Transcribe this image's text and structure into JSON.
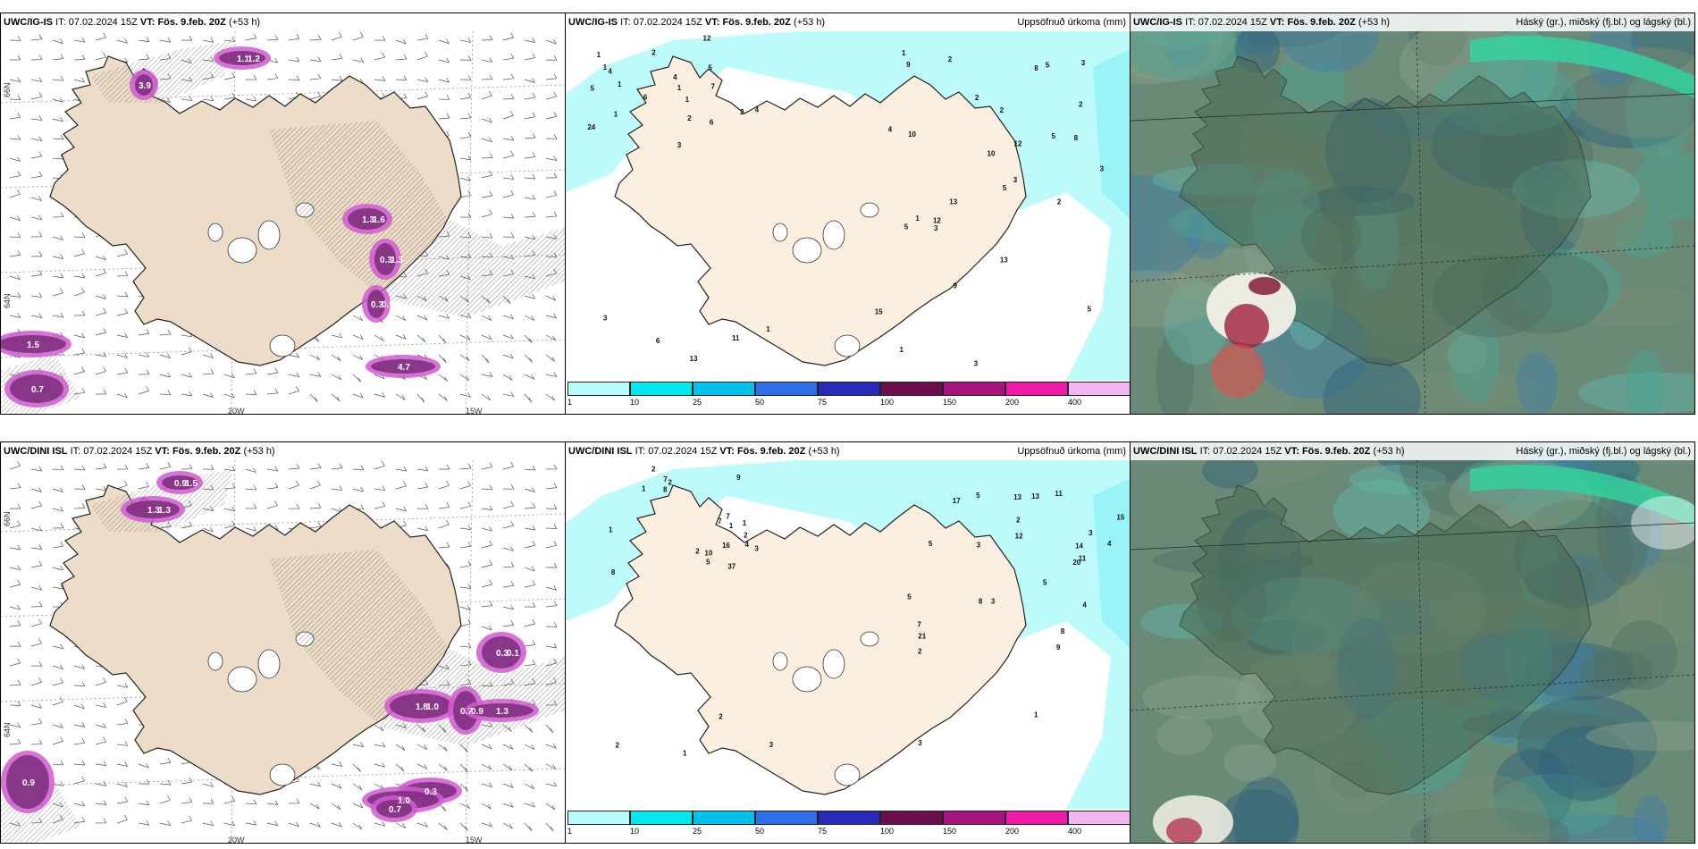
{
  "panels": [
    {
      "id": "p1",
      "model": "UWC/IG-IS",
      "it_label": "IT:",
      "it": "07.02.2024 15Z",
      "vt_label": "VT:",
      "vt": "Fös. 9.feb. 20Z",
      "lead": "(+53 h)",
      "right": ""
    },
    {
      "id": "p2",
      "model": "UWC/IG-IS",
      "it_label": "IT:",
      "it": "07.02.2024 15Z",
      "vt_label": "VT:",
      "vt": "Fös. 9.feb. 20Z",
      "lead": "(+53 h)",
      "right": "Uppsöfnuð úrkoma (mm)"
    },
    {
      "id": "p3",
      "model": "UWC/IG-IS",
      "it_label": "IT:",
      "it": "07.02.2024 15Z",
      "vt_label": "VT:",
      "vt": "Fös. 9.feb. 20Z",
      "lead": "(+53 h)",
      "right": "Háský (gr.), miðský (fj.bl.) og lágský (bl.)"
    },
    {
      "id": "p4",
      "model": "UWC/DINI ISL",
      "it_label": "IT:",
      "it": "07.02.2024 15Z",
      "vt_label": "VT:",
      "vt": "Fös. 9.feb. 20Z",
      "lead": "(+53 h)",
      "right": ""
    },
    {
      "id": "p5",
      "model": "UWC/DINI ISL",
      "it_label": "IT:",
      "it": "07.02.2024 15Z",
      "vt_label": "VT:",
      "vt": "Fös. 9.feb. 20Z",
      "lead": "(+53 h)",
      "right": "Uppsöfnuð úrkoma (mm)"
    },
    {
      "id": "p6",
      "model": "UWC/DINI ISL",
      "it_label": "IT:",
      "it": "07.02.2024 15Z",
      "vt_label": "VT:",
      "vt": "Fös. 9.feb. 20Z",
      "lead": "(+53 h)",
      "right": "Háský (gr.), miðský (fj.bl.) og lágský (bl.)"
    }
  ],
  "axes": {
    "lon_left": "20W",
    "lon_right": "15W",
    "lat_top": "66N",
    "lat_bottom": "64N"
  },
  "colorbar": {
    "ticks": [
      "1",
      "10",
      "25",
      "50",
      "75",
      "100",
      "150",
      "200",
      "400"
    ],
    "colors": [
      "#b8fbfb",
      "#00e8ee",
      "#00c0ec",
      "#2f6ee6",
      "#2a2ab8",
      "#6b0f4e",
      "#a8147e",
      "#ee1aa8",
      "#f2b6f0"
    ]
  },
  "colors": {
    "land": "#f3e6d6",
    "precip_light": "#bdfafa",
    "sea": "#ffffff",
    "cloud_high": "#6a7a6a",
    "cloud_mid": "#4fa09a",
    "cloud_low": "#3f78b8"
  },
  "precip_labels_ig": [
    "2",
    "1",
    "1",
    "1",
    "4",
    "6",
    "3",
    "7",
    "2",
    "2",
    "4",
    "5",
    "1",
    "1",
    "1",
    "6",
    "4",
    "12",
    "5",
    "24",
    "8",
    "5",
    "8",
    "2",
    "1",
    "1",
    "2",
    "2",
    "2",
    "2",
    "3",
    "5",
    "3",
    "5",
    "3",
    "4",
    "5",
    "3",
    "9",
    "10",
    "10",
    "13",
    "13",
    "12",
    "12",
    "15",
    "13",
    "1",
    "11",
    "9",
    "5",
    "3",
    "6",
    "3",
    "1"
  ],
  "precip_labels_dini": [
    "1",
    "1",
    "2",
    "8",
    "7",
    "7",
    "9",
    "2",
    "8",
    "1",
    "5",
    "7",
    "2",
    "3",
    "1",
    "4",
    "16",
    "37",
    "10",
    "2",
    "2",
    "2",
    "3",
    "3",
    "3",
    "4",
    "5",
    "4",
    "5",
    "5",
    "7",
    "9",
    "5",
    "8",
    "11",
    "17",
    "21",
    "20",
    "12",
    "13",
    "15",
    "14",
    "13",
    "11",
    "8",
    "2",
    "3",
    "3",
    "2",
    "1",
    "1"
  ],
  "wind_labels_ig": [
    "1.3",
    "0.3",
    "0.3",
    "1.1",
    "1.5",
    "0.7",
    "4.7",
    "3.9",
    "1.6",
    "1.3",
    "0.9",
    "1.2"
  ],
  "wind_labels_dini": [
    "1.3",
    "0.9",
    "1.8",
    "0.7",
    "0.3",
    "0.3",
    "1.3",
    "1.0",
    "0.9",
    "0.7",
    "1.3",
    "1.5",
    "1.0",
    "0.9",
    "0.1"
  ]
}
